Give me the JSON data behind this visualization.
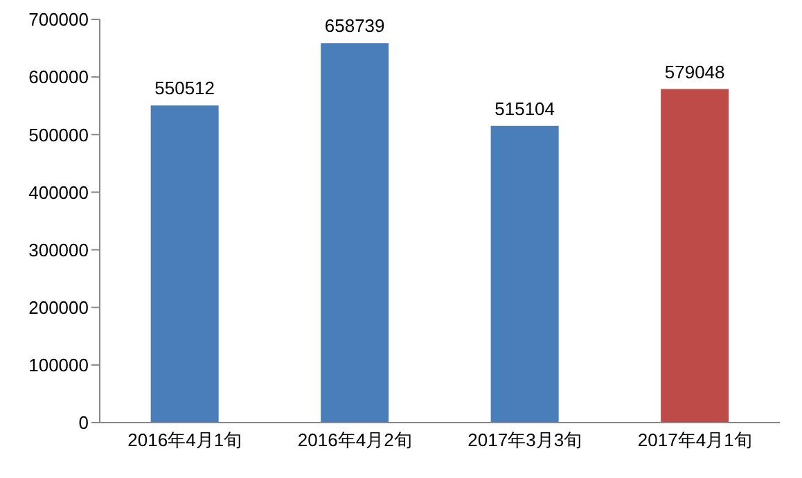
{
  "chart_data": {
    "type": "bar",
    "categories": [
      "2016年4月1旬",
      "2016年4月2旬",
      "2017年3月3旬",
      "2017年4月1旬"
    ],
    "values": [
      550512,
      658739,
      515104,
      579048
    ],
    "colors": [
      "#4a7ebb",
      "#4a7ebb",
      "#4a7ebb",
      "#be4b48"
    ],
    "ylim": [
      0,
      700000
    ],
    "yticks": [
      0,
      100000,
      200000,
      300000,
      400000,
      500000,
      600000,
      700000
    ],
    "grid": false,
    "legend": false,
    "data_labels": true
  }
}
